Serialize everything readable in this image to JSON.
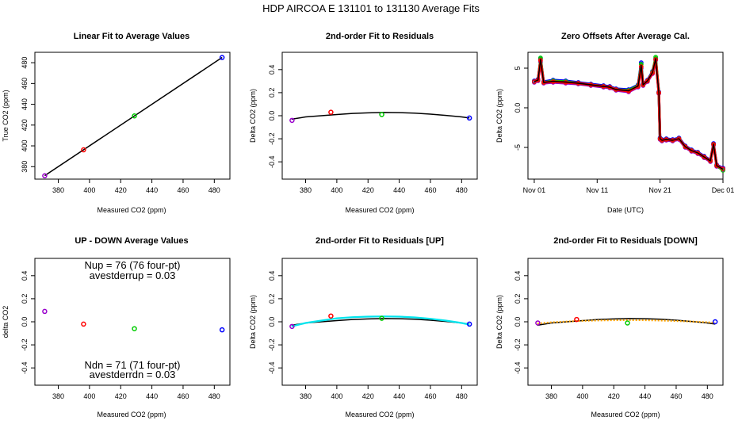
{
  "figure_title": "HDP   AIRCOA E   131101 to 131130   Average Fits",
  "colors": {
    "red": "#ff0000",
    "green": "#00cc00",
    "blue": "#0000ff",
    "purple": "#9900cc",
    "cyan": "#00e5ee",
    "orange": "#ffa500",
    "black": "#000000"
  },
  "chart_data": [
    {
      "id": "p1",
      "type": "scatter",
      "title": "Linear Fit to Average Values",
      "xlabel": "Measured CO2 (ppm)",
      "ylabel": "True CO2 (ppm)",
      "xlim": [
        365,
        490
      ],
      "ylim": [
        368,
        490
      ],
      "xticks": [
        380,
        400,
        420,
        440,
        460,
        480
      ],
      "yticks": [
        380,
        400,
        420,
        440,
        460,
        480
      ],
      "points": [
        {
          "x": 371.3,
          "y": 371.2,
          "color": "purple"
        },
        {
          "x": 396.2,
          "y": 396.2,
          "color": "red"
        },
        {
          "x": 428.8,
          "y": 428.8,
          "color": "green"
        },
        {
          "x": 485.0,
          "y": 485.0,
          "color": "blue"
        }
      ],
      "fit_line": {
        "x0": 371.3,
        "y0": 371.3,
        "x1": 485.0,
        "y1": 485.0
      }
    },
    {
      "id": "p2",
      "type": "scatter",
      "title": "2nd-order Fit to Residuals",
      "xlabel": "Measured CO2 (ppm)",
      "ylabel": "Delta CO2 (ppm)",
      "xlim": [
        365,
        490
      ],
      "ylim": [
        -0.55,
        0.55
      ],
      "xticks": [
        380,
        400,
        420,
        440,
        460,
        480
      ],
      "yticks": [
        -0.4,
        -0.2,
        0.0,
        0.2,
        0.4
      ],
      "points": [
        {
          "x": 371.3,
          "y": -0.04,
          "color": "purple"
        },
        {
          "x": 396.2,
          "y": 0.03,
          "color": "red"
        },
        {
          "x": 428.8,
          "y": 0.01,
          "color": "green"
        },
        {
          "x": 485.0,
          "y": -0.02,
          "color": "blue"
        }
      ],
      "curves": [
        {
          "color": "black",
          "x": [
            371,
            380,
            390,
            400,
            410,
            420,
            430,
            440,
            450,
            460,
            470,
            480,
            485
          ],
          "y": [
            -0.03,
            -0.01,
            0.0,
            0.01,
            0.02,
            0.025,
            0.028,
            0.027,
            0.022,
            0.014,
            0.003,
            -0.01,
            -0.02
          ]
        }
      ]
    },
    {
      "id": "p3",
      "type": "line",
      "title": "Zero Offsets After Average Cal.",
      "xlabel": "Date (UTC)",
      "ylabel": "Delta CO2 (ppm)",
      "xlim": [
        0,
        31
      ],
      "ylim": [
        -9,
        7
      ],
      "xticks": [
        1,
        11,
        21,
        31
      ],
      "xticklabels": [
        "Nov 01",
        "Nov 11",
        "Nov 21",
        "Dec 01"
      ],
      "yticks": [
        -5,
        0,
        5
      ],
      "series": [
        {
          "name": "purple",
          "color": "purple",
          "x": [
            1,
            1.6,
            2.0,
            2.5,
            4,
            6,
            8,
            10,
            12,
            13,
            14,
            16,
            17.5,
            18,
            18.3,
            19,
            19.8,
            20.3,
            20.8,
            21.0,
            21.3,
            22,
            23,
            24,
            25,
            26,
            27,
            28,
            29,
            29.5,
            30,
            31
          ],
          "y": [
            3.2,
            3.4,
            5.8,
            3.1,
            3.2,
            3.1,
            3.0,
            2.8,
            2.6,
            2.5,
            2.2,
            2.0,
            2.6,
            5.0,
            2.8,
            3.3,
            4.3,
            6.0,
            1.8,
            -4.0,
            -4.2,
            -4.1,
            -4.2,
            -4.0,
            -5.0,
            -5.5,
            -5.8,
            -6.3,
            -6.8,
            -4.7,
            -7.4,
            -7.8
          ]
        },
        {
          "name": "blue",
          "color": "blue",
          "x": [
            1,
            1.6,
            2.0,
            2.5,
            4,
            6,
            8,
            10,
            12,
            13,
            14,
            16,
            17.5,
            18,
            18.3,
            19,
            19.8,
            20.3,
            20.8,
            21.0,
            21.3,
            22,
            23,
            24,
            25,
            26,
            27,
            28,
            29,
            29.5,
            30,
            31
          ],
          "y": [
            3.4,
            3.6,
            6.2,
            3.3,
            3.5,
            3.4,
            3.2,
            3.0,
            2.8,
            2.7,
            2.4,
            2.3,
            2.9,
            5.7,
            3.0,
            3.5,
            4.6,
            6.2,
            2.0,
            -3.8,
            -4.0,
            -3.9,
            -4.0,
            -3.8,
            -4.8,
            -5.3,
            -5.6,
            -6.1,
            -6.6,
            -4.5,
            -7.2,
            -7.6
          ]
        },
        {
          "name": "green",
          "color": "green",
          "x": [
            1,
            1.6,
            2.0,
            2.5,
            4,
            6,
            8,
            10,
            12,
            13,
            14,
            16,
            17.5,
            18,
            18.3,
            19,
            19.8,
            20.3,
            20.8,
            21.0,
            21.3,
            22,
            23,
            24,
            25,
            26,
            27,
            28,
            29,
            29.5,
            30,
            31
          ],
          "y": [
            3.3,
            3.5,
            6.3,
            3.2,
            3.4,
            3.3,
            3.1,
            2.9,
            2.7,
            2.6,
            2.3,
            2.2,
            2.8,
            5.5,
            2.9,
            3.4,
            4.5,
            6.4,
            1.9,
            -3.9,
            -4.1,
            -4.0,
            -4.1,
            -3.9,
            -4.9,
            -5.4,
            -5.7,
            -6.2,
            -6.7,
            -4.6,
            -7.3,
            -7.9
          ]
        },
        {
          "name": "red",
          "color": "red",
          "x": [
            1,
            1.6,
            2.0,
            2.5,
            4,
            6,
            8,
            10,
            12,
            13,
            14,
            16,
            17.5,
            18,
            18.3,
            19,
            19.8,
            20.3,
            20.8,
            21.0,
            21.3,
            22,
            23,
            24,
            25,
            26,
            27,
            28,
            29,
            29.5,
            30,
            31
          ],
          "y": [
            3.3,
            3.5,
            6.0,
            3.2,
            3.3,
            3.2,
            3.1,
            2.9,
            2.7,
            2.6,
            2.3,
            2.1,
            2.7,
            5.2,
            2.9,
            3.4,
            4.4,
            6.1,
            1.9,
            -3.9,
            -4.1,
            -4.0,
            -4.1,
            -3.9,
            -4.9,
            -5.4,
            -5.7,
            -6.2,
            -6.7,
            -4.6,
            -7.3,
            -7.7
          ]
        },
        {
          "name": "mean",
          "color": "black",
          "x": [
            1,
            1.6,
            2.0,
            2.5,
            4,
            6,
            8,
            10,
            12,
            13,
            14,
            16,
            17.5,
            18,
            18.3,
            19,
            19.8,
            20.3,
            20.8,
            21.0,
            21.3,
            22,
            23,
            24,
            25,
            26,
            27,
            28,
            29,
            29.5,
            30,
            31
          ],
          "y": [
            3.3,
            3.5,
            6.1,
            3.2,
            3.35,
            3.25,
            3.1,
            2.9,
            2.7,
            2.6,
            2.3,
            2.15,
            2.75,
            5.35,
            2.9,
            3.4,
            4.45,
            6.2,
            1.9,
            -3.9,
            -4.1,
            -4.0,
            -4.1,
            -3.9,
            -4.9,
            -5.4,
            -5.7,
            -6.2,
            -6.7,
            -4.6,
            -7.3,
            -7.75
          ]
        }
      ]
    },
    {
      "id": "p4",
      "type": "scatter",
      "title": "UP - DOWN Average Values",
      "xlabel": "Measured CO2 (ppm)",
      "ylabel": "delta CO2",
      "xlim": [
        365,
        490
      ],
      "ylim": [
        -0.55,
        0.55
      ],
      "xticks": [
        380,
        400,
        420,
        440,
        460,
        480
      ],
      "yticks": [
        -0.4,
        -0.2,
        0.0,
        0.2,
        0.4
      ],
      "points": [
        {
          "x": 371.3,
          "y": 0.09,
          "color": "purple"
        },
        {
          "x": 396.2,
          "y": -0.02,
          "color": "red"
        },
        {
          "x": 428.8,
          "y": -0.06,
          "color": "green"
        },
        {
          "x": 485.0,
          "y": -0.07,
          "color": "blue"
        }
      ],
      "annotations": {
        "nup": "Nup = 76 (76 four-pt)",
        "avestderrup": "avestderrup =  0.03",
        "ndn": "Ndn = 71 (71 four-pt)",
        "avestderrdn": "avestderrdn =  0.03"
      }
    },
    {
      "id": "p5",
      "type": "scatter",
      "title": "2nd-order Fit to Residuals [UP]",
      "xlabel": "Measured CO2 (ppm)",
      "ylabel": "Delta CO2 (ppm)",
      "xlim": [
        365,
        490
      ],
      "ylim": [
        -0.55,
        0.55
      ],
      "xticks": [
        380,
        400,
        420,
        440,
        460,
        480
      ],
      "yticks": [
        -0.4,
        -0.2,
        0.0,
        0.2,
        0.4
      ],
      "points": [
        {
          "x": 371.3,
          "y": -0.04,
          "color": "purple"
        },
        {
          "x": 396.2,
          "y": 0.05,
          "color": "red"
        },
        {
          "x": 428.8,
          "y": 0.03,
          "color": "green"
        },
        {
          "x": 485.0,
          "y": -0.02,
          "color": "blue"
        }
      ],
      "curves": [
        {
          "color": "black",
          "x": [
            371,
            380,
            390,
            400,
            410,
            420,
            430,
            440,
            450,
            460,
            470,
            480,
            485
          ],
          "y": [
            -0.03,
            -0.01,
            0.0,
            0.01,
            0.02,
            0.025,
            0.028,
            0.027,
            0.022,
            0.014,
            0.003,
            -0.01,
            -0.02
          ]
        },
        {
          "color": "cyan",
          "x": [
            371,
            380,
            390,
            400,
            410,
            420,
            430,
            440,
            450,
            460,
            470,
            480,
            485
          ],
          "y": [
            -0.04,
            -0.01,
            0.01,
            0.03,
            0.04,
            0.045,
            0.047,
            0.045,
            0.038,
            0.026,
            0.01,
            -0.01,
            -0.025
          ]
        }
      ]
    },
    {
      "id": "p6",
      "type": "scatter",
      "title": "2nd-order Fit to Residuals [DOWN]",
      "xlabel": "Measured CO2 (ppm)",
      "ylabel": "Delta CO2 (ppm)",
      "xlim": [
        365,
        490
      ],
      "ylim": [
        -0.55,
        0.55
      ],
      "xticks": [
        380,
        400,
        420,
        440,
        460,
        480
      ],
      "yticks": [
        -0.4,
        -0.2,
        0.0,
        0.2,
        0.4
      ],
      "points": [
        {
          "x": 371.3,
          "y": -0.01,
          "color": "purple"
        },
        {
          "x": 396.2,
          "y": 0.02,
          "color": "red"
        },
        {
          "x": 428.8,
          "y": -0.01,
          "color": "green"
        },
        {
          "x": 485.0,
          "y": 0.0,
          "color": "blue"
        }
      ],
      "curves": [
        {
          "color": "black",
          "x": [
            371,
            380,
            390,
            400,
            410,
            420,
            430,
            440,
            450,
            460,
            470,
            480,
            485
          ],
          "y": [
            -0.03,
            -0.01,
            0.0,
            0.01,
            0.02,
            0.025,
            0.028,
            0.027,
            0.022,
            0.014,
            0.003,
            -0.01,
            -0.02
          ]
        },
        {
          "color": "orange",
          "dashed": true,
          "x": [
            371,
            380,
            390,
            400,
            410,
            420,
            430,
            440,
            450,
            460,
            470,
            480,
            485
          ],
          "y": [
            -0.015,
            -0.005,
            0.002,
            0.008,
            0.012,
            0.014,
            0.015,
            0.014,
            0.011,
            0.007,
            0.002,
            -0.004,
            -0.008
          ]
        }
      ]
    }
  ]
}
